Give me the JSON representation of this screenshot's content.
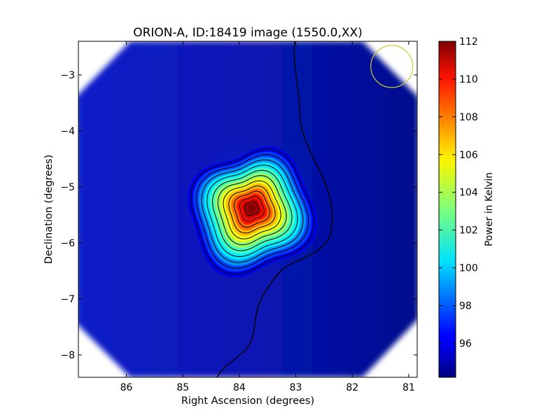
{
  "chart_data": {
    "type": "heatmap",
    "title": "ORION-A, ID:18419 image (1550.0,XX)",
    "xlabel": "Right Ascension (degrees)",
    "ylabel": "Declination (degrees)",
    "xlim": [
      86.85,
      80.85
    ],
    "ylim": [
      -8.4,
      -2.4
    ],
    "x_ticks": [
      86,
      85,
      84,
      83,
      82,
      81
    ],
    "x_tick_labels": [
      "86",
      "85",
      "84",
      "83",
      "82",
      "81"
    ],
    "y_ticks": [
      -3,
      -4,
      -5,
      -6,
      -7,
      -8
    ],
    "y_tick_labels": [
      "−3",
      "−4",
      "−5",
      "−6",
      "−7",
      "−8"
    ],
    "colorbar": {
      "label": "Power in Kelvin",
      "range": [
        94.2,
        112
      ],
      "ticks": [
        96,
        98,
        100,
        102,
        104,
        106,
        108,
        110,
        112
      ],
      "tick_labels": [
        "96",
        "98",
        "100",
        "102",
        "104",
        "106",
        "108",
        "110",
        "112"
      ],
      "colormap": "jet"
    },
    "source": {
      "ra": 83.78,
      "dec": -5.38,
      "peak": 112,
      "background": 94.4
    },
    "contour_levels": [
      96,
      97.5,
      99,
      100.5,
      102,
      103.5,
      105,
      106.5,
      108,
      109.5,
      111
    ],
    "beam_circle": {
      "ra": 81.3,
      "dec": -2.85,
      "color": "#cccc33"
    },
    "grid": false
  }
}
